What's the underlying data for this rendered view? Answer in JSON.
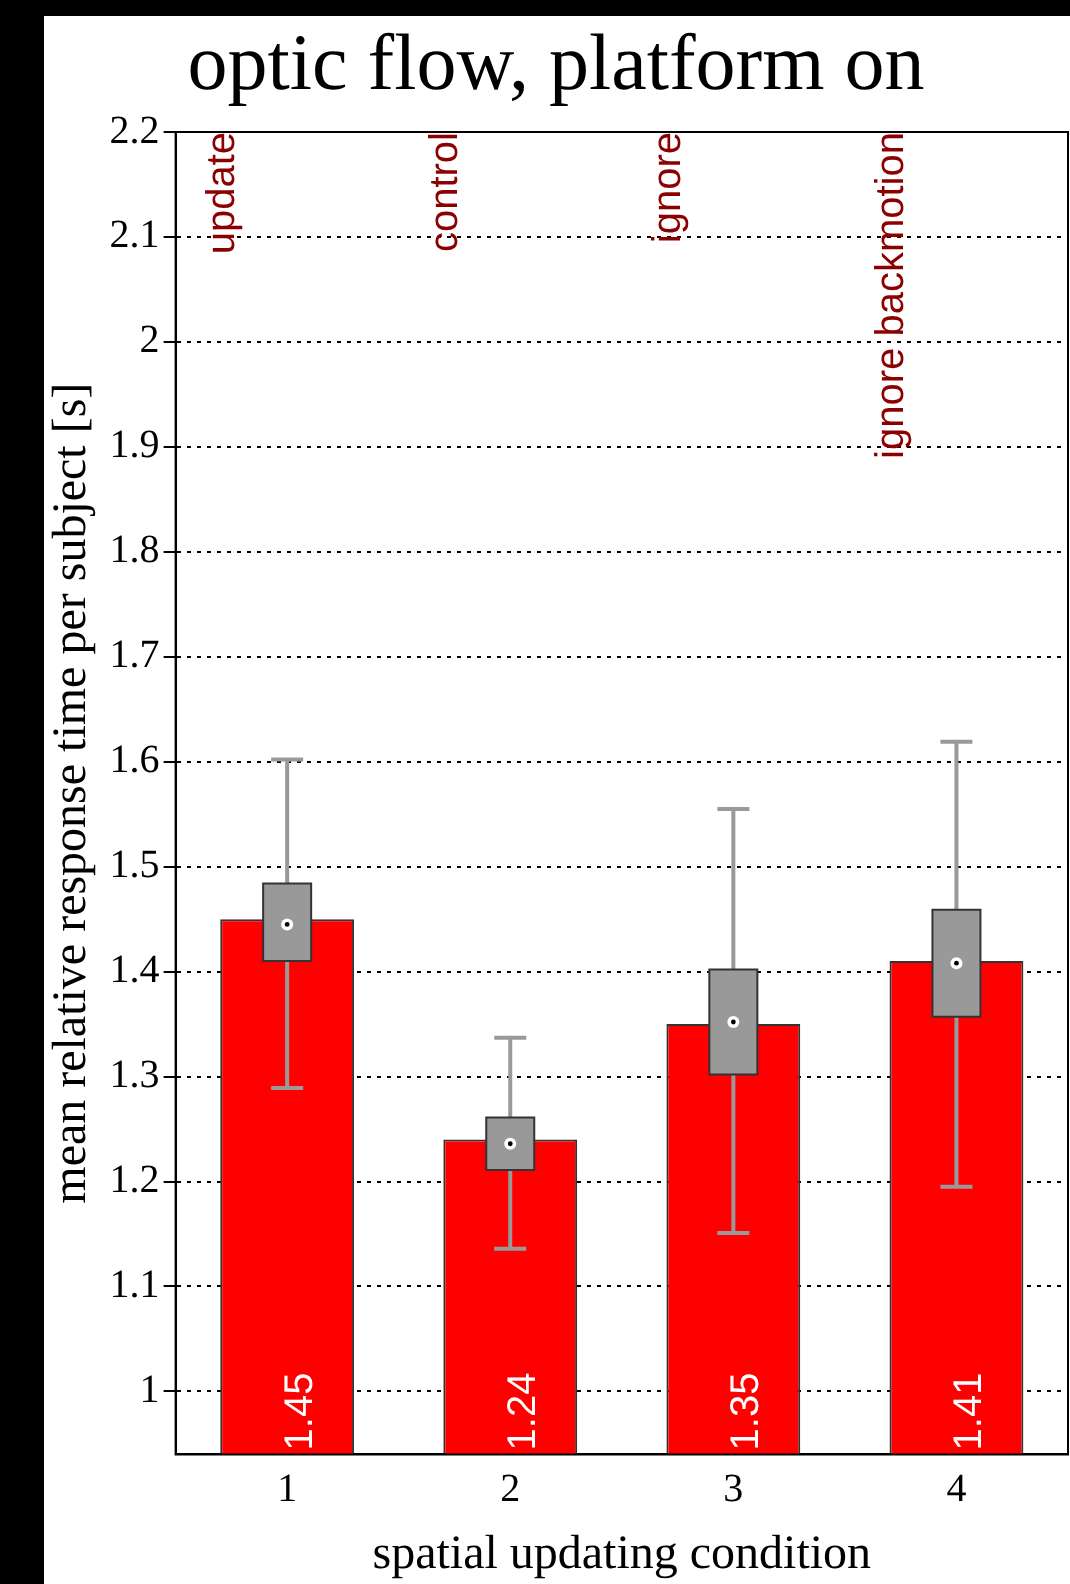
{
  "chart_data": {
    "type": "bar",
    "title": "optic flow, platform on",
    "xlabel": "spatial updating condition",
    "ylabel": "mean relative response time per subject [s]",
    "categories": [
      "1",
      "2",
      "3",
      "4"
    ],
    "series": [
      {
        "type": "bar",
        "color": "#ff0000",
        "values": [
          1.45,
          1.24,
          1.35,
          1.41
        ]
      },
      {
        "type": "box",
        "color": "#999999",
        "boxes": [
          {
            "low": 1.289,
            "q1": 1.41,
            "median": 1.445,
            "q3": 1.484,
            "high": 1.602
          },
          {
            "low": 1.136,
            "q1": 1.211,
            "median": 1.236,
            "q3": 1.261,
            "high": 1.337
          },
          {
            "low": 1.151,
            "q1": 1.302,
            "median": 1.352,
            "q3": 1.402,
            "high": 1.555
          },
          {
            "low": 1.195,
            "q1": 1.357,
            "median": 1.408,
            "q3": 1.459,
            "high": 1.619
          }
        ]
      }
    ],
    "data_labels": true,
    "ylim": [
      0.94,
      2.2
    ],
    "yticks": [
      1,
      1.1,
      1.2,
      1.3,
      1.4,
      1.5,
      1.6,
      1.7,
      1.8,
      1.9,
      2,
      2.1,
      2.2
    ],
    "grid": "y",
    "legend": false,
    "annotations": [
      "update",
      "control",
      "ignore",
      "ignore backmotion"
    ]
  }
}
